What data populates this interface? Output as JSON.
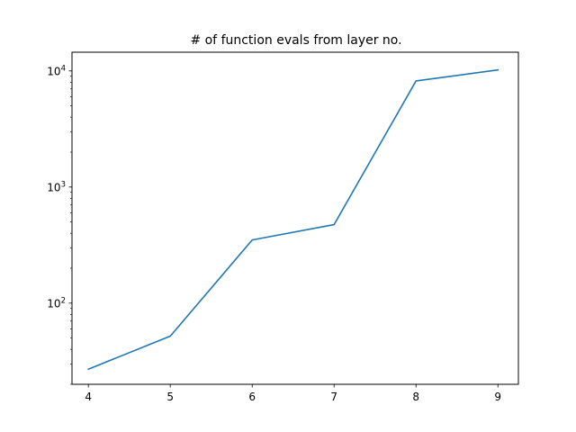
{
  "chart_data": {
    "type": "line",
    "title": "# of function evals from layer no.",
    "xlabel": "",
    "ylabel": "",
    "yscale": "log",
    "x": [
      4,
      5,
      6,
      7,
      8,
      9
    ],
    "series": [
      {
        "values": [
          27,
          52,
          350,
          475,
          8200,
          10200
        ],
        "color": "#1f77b4"
      }
    ],
    "xlim": [
      3.8,
      9.25
    ],
    "ylim": [
      20,
      14500
    ],
    "xticks": [
      4,
      5,
      6,
      7,
      8,
      9
    ],
    "yticks": [
      {
        "value": 100,
        "base": "10",
        "exp": "2"
      },
      {
        "value": 1000,
        "base": "10",
        "exp": "3"
      },
      {
        "value": 10000,
        "base": "10",
        "exp": "4"
      }
    ],
    "grid": false,
    "legend": "none"
  }
}
